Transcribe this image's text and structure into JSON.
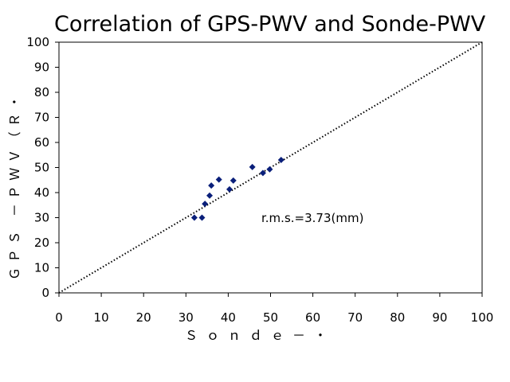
{
  "chart_data": {
    "type": "scatter",
    "title": "Correlation of GPS-PWV and Sonde-PWV",
    "xlabel": "Ｓｏｎｄｅ－・",
    "ylabel": "ＧＰＳ －ＰＷＶ（Ｒ・",
    "xlim": [
      0,
      100
    ],
    "ylim": [
      0,
      100
    ],
    "xticks": [
      0,
      10,
      20,
      30,
      40,
      50,
      60,
      70,
      80,
      90,
      100
    ],
    "yticks": [
      0,
      10,
      20,
      30,
      40,
      50,
      60,
      70,
      80,
      90,
      100
    ],
    "grid": false,
    "legend": "none",
    "annotation": "r.m.s.=3.73(mm)",
    "reference_line": {
      "style": "dotted",
      "from": [
        0,
        0
      ],
      "to": [
        100,
        100
      ]
    },
    "series": [
      {
        "marker": "diamond",
        "color": "#0a1f7a",
        "points": [
          [
            32.0,
            30.0
          ],
          [
            33.8,
            30.0
          ],
          [
            34.5,
            35.5
          ],
          [
            35.6,
            38.8
          ],
          [
            36.0,
            42.8
          ],
          [
            37.8,
            45.2
          ],
          [
            40.3,
            41.3
          ],
          [
            41.2,
            44.8
          ],
          [
            45.7,
            50.2
          ],
          [
            48.2,
            47.8
          ],
          [
            49.8,
            49.3
          ],
          [
            52.5,
            53.0
          ]
        ]
      }
    ]
  }
}
